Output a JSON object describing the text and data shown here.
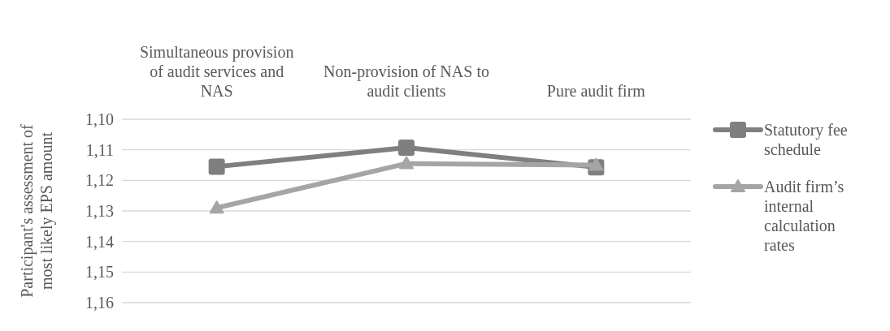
{
  "chart_data": {
    "type": "line",
    "categories": [
      "Simultaneous provision of audit services and NAS",
      "Non-provision of NAS to audit clients",
      "Pure audit firm"
    ],
    "ylabel": "Participant's assessment of most likely EPS amount",
    "ylim": [
      1.16,
      1.1
    ],
    "yticks": [
      {
        "value": 1.1,
        "label": "1,10"
      },
      {
        "value": 1.11,
        "label": "1,11"
      },
      {
        "value": 1.12,
        "label": "1,12"
      },
      {
        "value": 1.13,
        "label": "1,13"
      },
      {
        "value": 1.14,
        "label": "1,14"
      },
      {
        "value": 1.15,
        "label": "1,15"
      },
      {
        "value": 1.16,
        "label": "1,16"
      }
    ],
    "series": [
      {
        "name": "Statutory fee schedule",
        "color": "#7f7f7f",
        "marker": "square",
        "values": [
          1.1155,
          1.1093,
          1.1157
        ]
      },
      {
        "name": "Audit firm’s internal calculation rates",
        "color": "#a5a5a5",
        "marker": "triangle",
        "values": [
          1.129,
          1.1145,
          1.115
        ]
      }
    ],
    "grid": "y",
    "legend": "right"
  }
}
